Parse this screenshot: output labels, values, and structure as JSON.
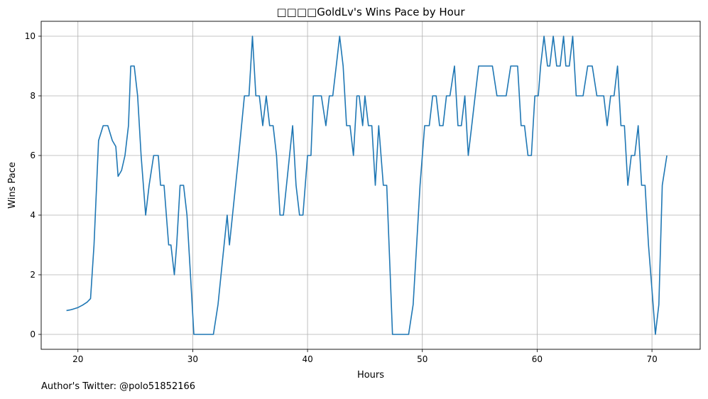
{
  "chart_data": {
    "type": "line",
    "title": "□□□□GoldLv's Wins Pace by Hour",
    "xlabel": "Hours",
    "ylabel": "Wins Pace",
    "xlim": [
      16.8,
      74.2
    ],
    "ylim": [
      -0.5,
      10.5
    ],
    "xticks": [
      20,
      30,
      40,
      50,
      60,
      70
    ],
    "yticks": [
      0,
      2,
      4,
      6,
      8,
      10
    ],
    "grid": true,
    "line_color": "#1f77b4",
    "series": [
      {
        "x": [
          19.0,
          19.3,
          19.6,
          20.0,
          20.4,
          20.8,
          21.1,
          21.4,
          21.8,
          22.2,
          22.6,
          23.0,
          23.3,
          23.5,
          23.8,
          24.1,
          24.4,
          24.6,
          24.9,
          25.2,
          25.5,
          25.9,
          26.2,
          26.6,
          27.0,
          27.2,
          27.5,
          27.9,
          28.1,
          28.4,
          28.6,
          28.9,
          29.2,
          29.5,
          29.8,
          30.1,
          30.3,
          30.6,
          31.0,
          31.4,
          31.8,
          32.2,
          32.6,
          33.0,
          33.2,
          33.6,
          34.0,
          34.5,
          34.9,
          35.2,
          35.5,
          35.8,
          36.1,
          36.4,
          36.7,
          37.0,
          37.3,
          37.6,
          37.9,
          38.3,
          38.7,
          39.0,
          39.3,
          39.6,
          40.0,
          40.3,
          40.5,
          40.8,
          41.2,
          41.6,
          41.9,
          42.2,
          42.5,
          42.8,
          43.1,
          43.4,
          43.7,
          44.0,
          44.3,
          44.5,
          44.8,
          45.0,
          45.3,
          45.6,
          45.9,
          46.2,
          46.6,
          46.9,
          47.2,
          47.4,
          47.7,
          48.0,
          48.4,
          48.8,
          49.2,
          49.5,
          49.8,
          50.2,
          50.6,
          50.9,
          51.2,
          51.5,
          51.8,
          52.1,
          52.4,
          52.8,
          53.1,
          53.4,
          53.7,
          54.0,
          54.3,
          54.6,
          54.9,
          55.3,
          55.7,
          56.1,
          56.5,
          56.9,
          57.3,
          57.7,
          58.0,
          58.3,
          58.6,
          58.9,
          59.2,
          59.5,
          59.8,
          60.1,
          60.3,
          60.6,
          60.9,
          61.1,
          61.4,
          61.7,
          62.0,
          62.3,
          62.5,
          62.8,
          63.1,
          63.4,
          63.7,
          64.0,
          64.4,
          64.8,
          65.2,
          65.5,
          65.8,
          66.1,
          66.4,
          66.7,
          67.0,
          67.3,
          67.6,
          67.9,
          68.2,
          68.5,
          68.8,
          69.1,
          69.4,
          69.7,
          70.0,
          70.3,
          70.6,
          70.9,
          71.3
        ],
        "y": [
          0.8,
          0.82,
          0.85,
          0.9,
          0.98,
          1.08,
          1.2,
          3.0,
          6.5,
          7.0,
          7.0,
          6.5,
          6.3,
          5.3,
          5.5,
          6.0,
          7.0,
          9.0,
          9.0,
          8.0,
          6.0,
          4.0,
          5.0,
          6.0,
          6.0,
          5.0,
          5.0,
          3.0,
          3.0,
          2.0,
          3.0,
          5.0,
          5.0,
          4.0,
          2.0,
          0.0,
          0.0,
          0.0,
          0.0,
          0.0,
          0.0,
          1.0,
          2.5,
          4.0,
          3.0,
          4.5,
          6.0,
          8.0,
          8.0,
          10.0,
          8.0,
          8.0,
          7.0,
          8.0,
          7.0,
          7.0,
          6.0,
          4.0,
          4.0,
          5.5,
          7.0,
          5.0,
          4.0,
          4.0,
          6.0,
          6.0,
          8.0,
          8.0,
          8.0,
          7.0,
          8.0,
          8.0,
          9.0,
          10.0,
          9.0,
          7.0,
          7.0,
          6.0,
          8.0,
          8.0,
          7.0,
          8.0,
          7.0,
          7.0,
          5.0,
          7.0,
          5.0,
          5.0,
          2.0,
          0.0,
          0.0,
          0.0,
          0.0,
          0.0,
          1.0,
          3.0,
          5.0,
          7.0,
          7.0,
          8.0,
          8.0,
          7.0,
          7.0,
          8.0,
          8.0,
          9.0,
          7.0,
          7.0,
          8.0,
          6.0,
          7.0,
          8.0,
          9.0,
          9.0,
          9.0,
          9.0,
          8.0,
          8.0,
          8.0,
          9.0,
          9.0,
          9.0,
          7.0,
          7.0,
          6.0,
          6.0,
          8.0,
          8.0,
          9.0,
          10.0,
          9.0,
          9.0,
          10.0,
          9.0,
          9.0,
          10.0,
          9.0,
          9.0,
          10.0,
          8.0,
          8.0,
          8.0,
          9.0,
          9.0,
          8.0,
          8.0,
          8.0,
          7.0,
          8.0,
          8.0,
          9.0,
          7.0,
          7.0,
          5.0,
          6.0,
          6.0,
          7.0,
          5.0,
          5.0,
          3.0,
          1.5,
          0.0,
          1.0,
          5.0,
          6.0
        ]
      }
    ]
  },
  "footer_text": "Author's Twitter: @polo51852166"
}
